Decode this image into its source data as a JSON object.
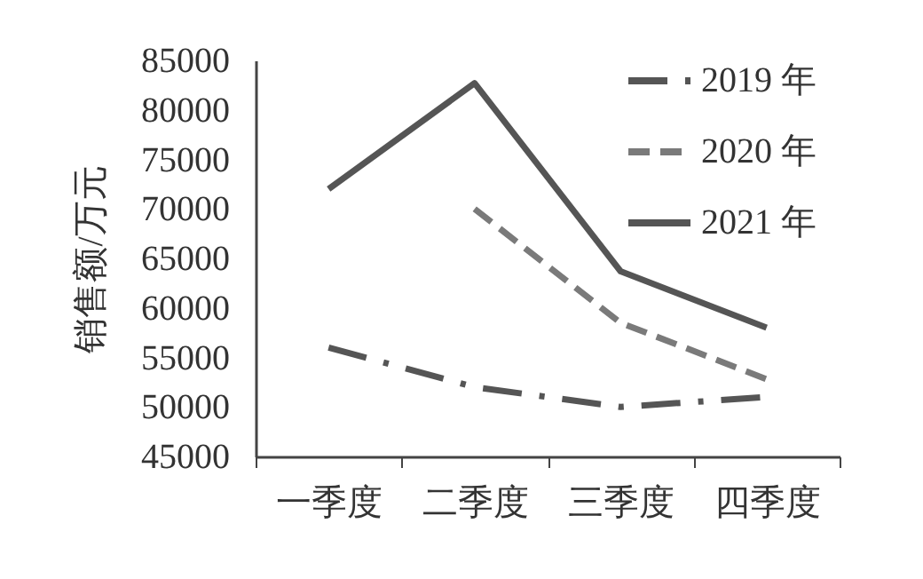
{
  "chart_data": {
    "type": "line",
    "ylabel": "销售额/万元",
    "categories": [
      "一季度",
      "二季度",
      "三季度",
      "四季度"
    ],
    "series": [
      {
        "name": "2019 年",
        "color": "#555555",
        "line_style": "dashdot",
        "values": [
          56000,
          52000,
          50000,
          51000
        ]
      },
      {
        "name": "2020 年",
        "color": "#7a7a7a",
        "line_style": "dashed",
        "values": [
          null,
          70000,
          58500,
          52800
        ]
      },
      {
        "name": "2021 年",
        "color": "#555555",
        "line_style": "solid",
        "values": [
          72000,
          82700,
          63700,
          58000
        ]
      }
    ],
    "ylim": [
      45000,
      85000
    ],
    "yticks": [
      45000,
      50000,
      55000,
      60000,
      65000,
      70000,
      75000,
      80000,
      85000
    ],
    "grid": false,
    "legend": "top right",
    "marker": "none"
  }
}
